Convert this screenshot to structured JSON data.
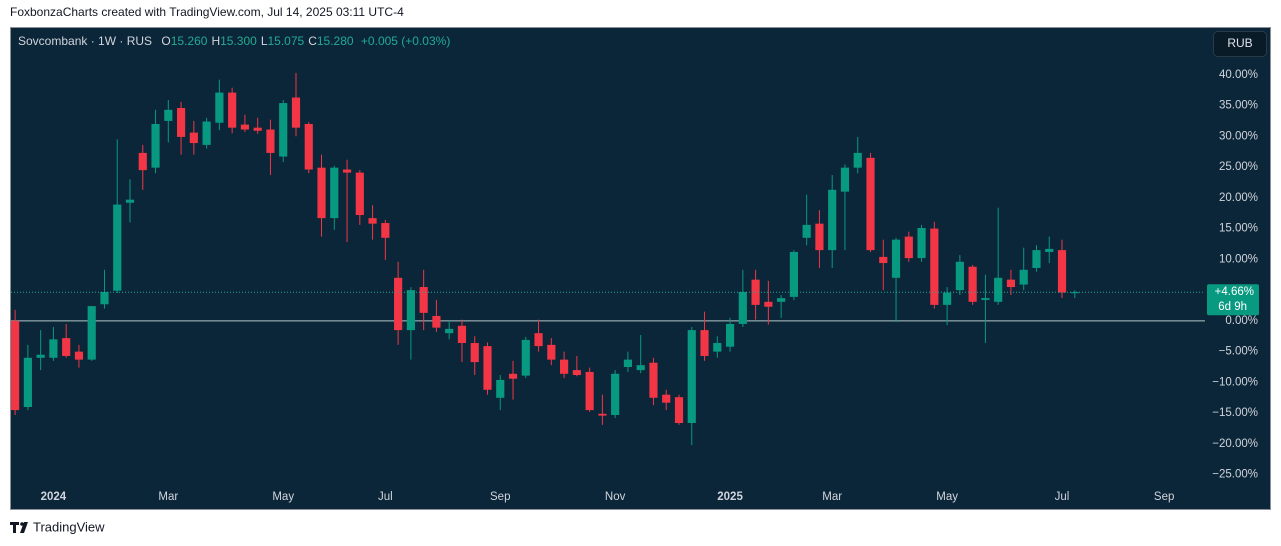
{
  "header": {
    "attribution": "FoxbonzaCharts created with TradingView.com, Jul 14, 2025 03:11 UTC-4",
    "footer": "TradingView"
  },
  "chart_data": {
    "type": "candlestick",
    "title": "Sovcombank · 1W · RUS",
    "ohlc_legend": [
      {
        "label": "O",
        "value": "15.260"
      },
      {
        "label": "H",
        "value": "15.300"
      },
      {
        "label": "L",
        "value": "15.075"
      },
      {
        "label": "C",
        "value": "15.280"
      }
    ],
    "change": "+0.005 (+0.03%)",
    "currency": "RUB",
    "up_color": "#089981",
    "down_color": "#f23645",
    "open": [
      0,
      -14,
      -6,
      -6,
      -2.8,
      -5,
      -6.3,
      2.7,
      4.9,
      19.2,
      27.3,
      24.9,
      32.5,
      34.6,
      30.6,
      28.6,
      32.2,
      37.1,
      31.9,
      31.4,
      31.1,
      26.7,
      36.3,
      32,
      24.9,
      16.7,
      24.6,
      24.1,
      16.7,
      15.9,
      7,
      -1.5,
      5.5,
      0.8,
      -2,
      -0.8,
      -3.6,
      -4.1,
      -12.5,
      -8.6,
      -8.9,
      -2,
      -3.9,
      -6.3,
      -8,
      -8.3,
      -15.1,
      -15.3,
      -7.5,
      -8,
      -6.8,
      -12,
      -12.4,
      -16.6,
      -1.5,
      -5,
      -4.2,
      -0.5,
      6.7,
      3.1,
      3.1,
      3.9,
      13.5,
      15.8,
      11.5,
      21,
      24.9,
      26.5,
      10.4,
      7,
      13.7,
      10.2,
      15,
      2.6,
      5,
      8.8,
      3.4,
      3.1,
      6.7,
      5.9,
      8.6,
      11.2,
      11.5,
      4.6
    ],
    "high": [
      1.8,
      -3.9,
      -1.5,
      -1,
      -0.5,
      -3.9,
      2.4,
      8.3,
      29.5,
      23,
      28.6,
      34.3,
      35.9,
      35.6,
      32.5,
      33,
      39.2,
      37.9,
      33.5,
      33,
      32.7,
      35.9,
      40.3,
      32.3,
      27,
      25.2,
      26.2,
      24.5,
      18.8,
      16.4,
      9.6,
      5.5,
      8.3,
      3.4,
      0,
      0.2,
      -2.5,
      -3.5,
      -8.8,
      -6.5,
      -2.6,
      0.2,
      -2.8,
      -5,
      -5.7,
      -7.6,
      -12,
      -8,
      -5,
      -2.3,
      -6,
      -11.2,
      -12,
      -1,
      1.5,
      -2.5,
      0.5,
      8.3,
      8.3,
      6.5,
      4.2,
      11.5,
      20.5,
      18,
      23.7,
      25.4,
      29.9,
      27.3,
      13.2,
      13.5,
      14.5,
      15.6,
      16.1,
      5.5,
      10.7,
      9.1,
      7.5,
      18.4,
      8.3,
      11.9,
      12.3,
      13.7,
      13.2,
      5
    ],
    "low": [
      -15.3,
      -14.5,
      -8,
      -6.5,
      -6,
      -7.6,
      -6.5,
      2,
      4.5,
      16,
      21.3,
      24,
      29,
      27,
      27,
      28,
      31,
      30.5,
      30.7,
      30.4,
      23.7,
      25.8,
      30,
      24,
      13.7,
      14.8,
      12.8,
      15.6,
      13.2,
      9.9,
      -3.9,
      -6.3,
      -1.5,
      -1.8,
      -3,
      -6.7,
      -8.8,
      -12,
      -14.5,
      -12.8,
      -9.3,
      -5,
      -7.2,
      -9.3,
      -9,
      -14.8,
      -16.9,
      -15.8,
      -8.3,
      -8.5,
      -13.7,
      -14.5,
      -16.9,
      -20.2,
      -6.5,
      -6,
      -5,
      -1,
      0.2,
      -0.6,
      0.5,
      3.4,
      12.3,
      8.6,
      8.6,
      11.5,
      24,
      11.2,
      5,
      -0.2,
      9.6,
      9.6,
      2,
      -0.7,
      4.2,
      2.6,
      -3.6,
      2.6,
      4.2,
      5,
      8,
      9.4,
      3.7,
      3.7
    ],
    "close": [
      -14.5,
      -6,
      -5.5,
      -3,
      -5.7,
      -6.3,
      2.4,
      4.7,
      18.9,
      19.7,
      24.5,
      32,
      34.3,
      29.9,
      28.9,
      32.4,
      37.1,
      31.4,
      31.1,
      30.9,
      27.3,
      35.4,
      31.4,
      24.6,
      16.7,
      24.9,
      24.1,
      17.2,
      15.8,
      13.5,
      -1.5,
      5,
      1.3,
      -1.1,
      -1.3,
      -3.6,
      -6.7,
      -11.2,
      -9.6,
      -9.4,
      -3.1,
      -4.1,
      -6.3,
      -8.6,
      -8.8,
      -14.5,
      -15.4,
      -8.6,
      -6.3,
      -7.2,
      -12.5,
      -13.3,
      -16.6,
      -1.5,
      -5.7,
      -3.6,
      -0.5,
      4.7,
      2.6,
      2.3,
      3.7,
      11.2,
      15.6,
      11.5,
      21.3,
      24.9,
      27.3,
      11.5,
      9.4,
      13.2,
      10.2,
      15.1,
      2.6,
      4.6,
      9.6,
      3.1,
      3.7,
      7,
      5.5,
      8.3,
      11.5,
      11.7,
      4.6,
      4.66
    ],
    "last_price": {
      "value": 4.66,
      "label": "+4.66%",
      "countdown": "6d 9h"
    },
    "xlim": [
      -0.4,
      93.2
    ],
    "xticks": [
      {
        "value": 3,
        "label": "2024"
      },
      {
        "value": 12,
        "label": "Mar"
      },
      {
        "value": 21,
        "label": "May"
      },
      {
        "value": 29,
        "label": "Jul"
      },
      {
        "value": 38,
        "label": "Sep"
      },
      {
        "value": 47,
        "label": "Nov"
      },
      {
        "value": 56,
        "label": "2025"
      },
      {
        "value": 64,
        "label": "Mar"
      },
      {
        "value": 73,
        "label": "May"
      },
      {
        "value": 82,
        "label": "Jul"
      },
      {
        "value": 90,
        "label": "Sep"
      }
    ],
    "ylim": [
      -27,
      47.6
    ],
    "yticks": [
      {
        "value": 40,
        "label": "40.00%"
      },
      {
        "value": 35,
        "label": "35.00%"
      },
      {
        "value": 30,
        "label": "30.00%"
      },
      {
        "value": 25,
        "label": "25.00%"
      },
      {
        "value": 20,
        "label": "20.00%"
      },
      {
        "value": 15,
        "label": "15.00%"
      },
      {
        "value": 10,
        "label": "10.00%"
      },
      {
        "value": 5,
        "label": "5.00%"
      },
      {
        "value": 0,
        "label": "0.00%"
      },
      {
        "value": -5,
        "label": "−5.00%"
      },
      {
        "value": -10,
        "label": "−10.00%"
      },
      {
        "value": -15,
        "label": "−15.00%"
      },
      {
        "value": -20,
        "label": "−20.00%"
      },
      {
        "value": -25,
        "label": "−25.00%"
      }
    ],
    "grid": false
  }
}
